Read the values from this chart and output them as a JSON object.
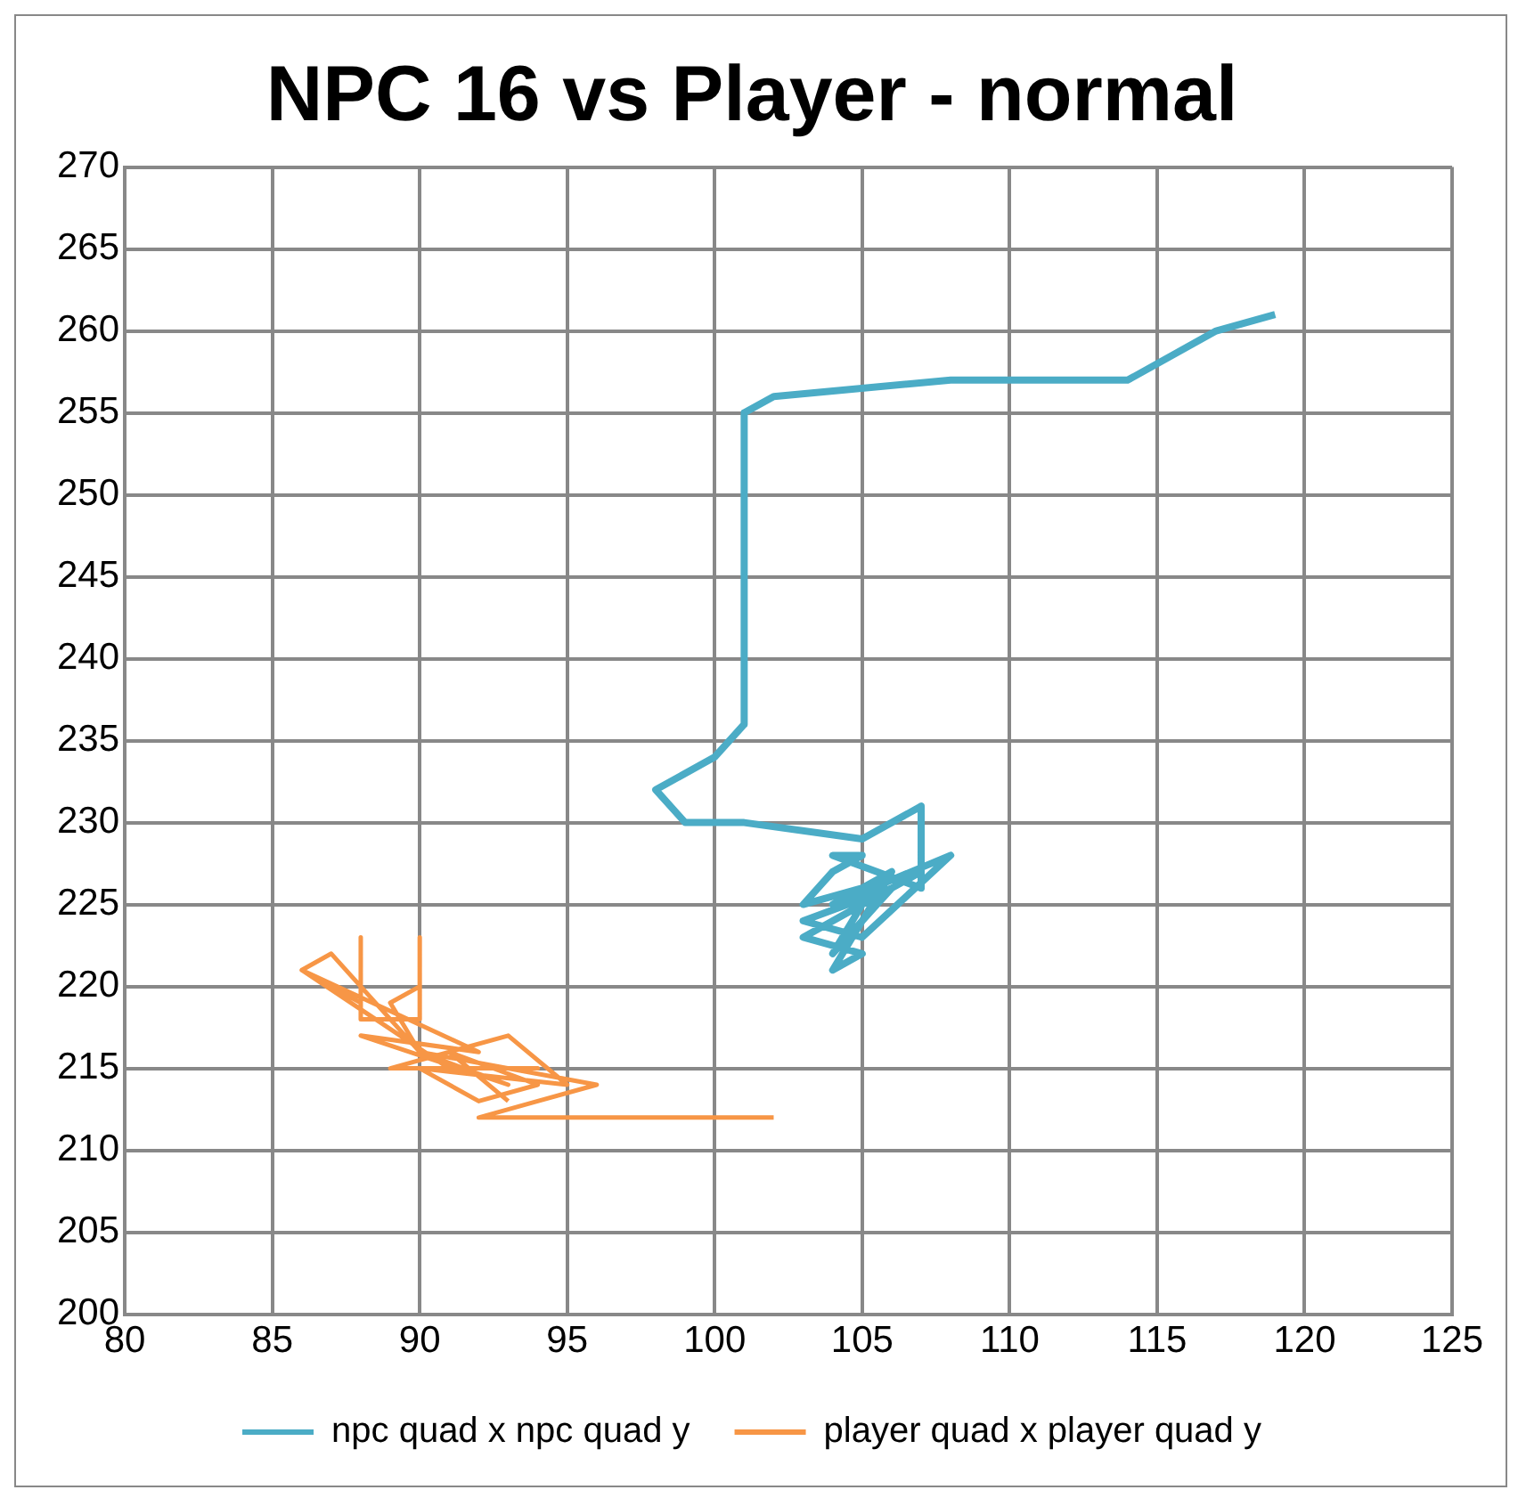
{
  "chart_data": {
    "type": "line",
    "title": "NPC 16 vs Player - normal",
    "xlim": [
      80,
      125
    ],
    "xticks": [
      80,
      85,
      90,
      95,
      100,
      105,
      110,
      115,
      120,
      125
    ],
    "ylim": [
      200,
      270
    ],
    "yticks": [
      200,
      205,
      210,
      215,
      220,
      225,
      230,
      235,
      240,
      245,
      250,
      255,
      260,
      265,
      270
    ],
    "grid": true,
    "legend": "bottom",
    "marker": "none",
    "line_style": "solid",
    "series": [
      {
        "name": "npc quad x npc quad y",
        "color": "#4bacc6",
        "x": [
          119,
          117,
          114,
          108,
          102,
          101,
          101,
          100,
          98,
          99,
          101,
          105,
          107,
          107,
          104,
          105,
          104,
          103,
          107,
          104,
          106,
          103,
          105,
          108,
          104,
          106,
          104,
          105,
          103,
          106,
          104,
          105
        ],
        "values": [
          261,
          260,
          257,
          257,
          256,
          255,
          236,
          234,
          232,
          230,
          230,
          229,
          231,
          226,
          228,
          228,
          227,
          225,
          227,
          224,
          226,
          224,
          223,
          228,
          225,
          227,
          221,
          222,
          223,
          226,
          222,
          225
        ]
      },
      {
        "name": "player quad x player quad y",
        "color": "#f79646",
        "x": [
          102,
          92,
          94,
          96,
          90,
          89,
          90,
          90,
          90,
          88,
          88,
          88,
          86,
          87,
          90,
          93,
          88,
          92,
          86,
          91,
          94,
          89,
          93,
          95,
          90,
          92,
          94,
          91,
          93
        ],
        "values": [
          212,
          212,
          213,
          214,
          216,
          219,
          220,
          223,
          218,
          218,
          223,
          219,
          221,
          222,
          216,
          214,
          217,
          216,
          221,
          215,
          215,
          215,
          217,
          214,
          215,
          213,
          214,
          216,
          213
        ]
      }
    ]
  }
}
